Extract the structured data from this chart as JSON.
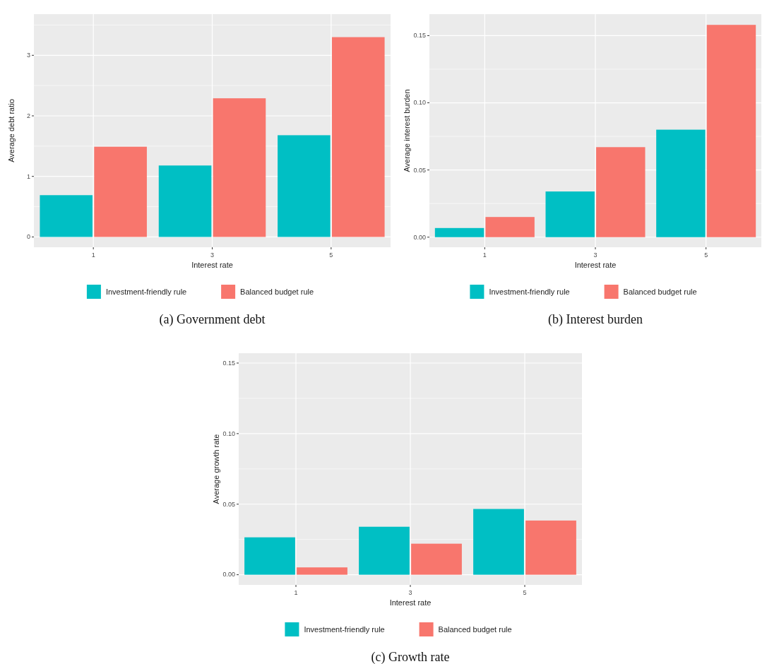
{
  "chart_data": [
    {
      "type": "bar",
      "title": "(a) Government debt",
      "xlabel": "Interest rate",
      "ylabel": "Average debt ratio",
      "categories": [
        "1",
        "3",
        "5"
      ],
      "series": [
        {
          "name": "Investment-friendly rule",
          "color": "#00bfc4",
          "values": [
            0.69,
            1.18,
            1.68
          ]
        },
        {
          "name": "Balanced budget rule",
          "color": "#f8766d",
          "values": [
            1.49,
            2.29,
            3.3
          ]
        }
      ],
      "ylim": [
        -0.17,
        3.68
      ],
      "yticks": [
        0,
        1,
        2,
        3
      ],
      "grid": true,
      "legend": "bottom"
    },
    {
      "type": "bar",
      "title": "(b) Interest burden",
      "xlabel": "Interest rate",
      "ylabel": "Average interest burden",
      "categories": [
        "1",
        "3",
        "5"
      ],
      "series": [
        {
          "name": "Investment-friendly rule",
          "color": "#00bfc4",
          "values": [
            0.0068,
            0.034,
            0.08
          ]
        },
        {
          "name": "Balanced budget rule",
          "color": "#f8766d",
          "values": [
            0.015,
            0.067,
            0.158
          ]
        }
      ],
      "ylim": [
        -0.0075,
        0.166
      ],
      "yticks": [
        {
          "value": 0,
          "label": "0.00"
        },
        {
          "value": 0.05,
          "label": "0.05"
        },
        {
          "value": 0.1,
          "label": "0.10"
        },
        {
          "value": 0.15,
          "label": "0.15"
        }
      ],
      "grid": true,
      "legend": "bottom"
    },
    {
      "type": "bar",
      "title": "(c) Growth rate",
      "xlabel": "Interest rate",
      "ylabel": "Average growth rate",
      "categories": [
        "1",
        "3",
        "5"
      ],
      "series": [
        {
          "name": "Investment-friendly rule",
          "color": "#00bfc4",
          "values": [
            0.0265,
            0.034,
            0.0466
          ]
        },
        {
          "name": "Balanced budget rule",
          "color": "#f8766d",
          "values": [
            0.0052,
            0.022,
            0.0384
          ]
        }
      ],
      "ylim": [
        -0.0072,
        0.157
      ],
      "yticks": [
        {
          "value": 0,
          "label": "0.00"
        },
        {
          "value": 0.05,
          "label": "0.05"
        },
        {
          "value": 0.1,
          "label": "0.10"
        },
        {
          "value": 0.15,
          "label": "0.15"
        }
      ],
      "grid": true,
      "legend": "bottom"
    }
  ]
}
